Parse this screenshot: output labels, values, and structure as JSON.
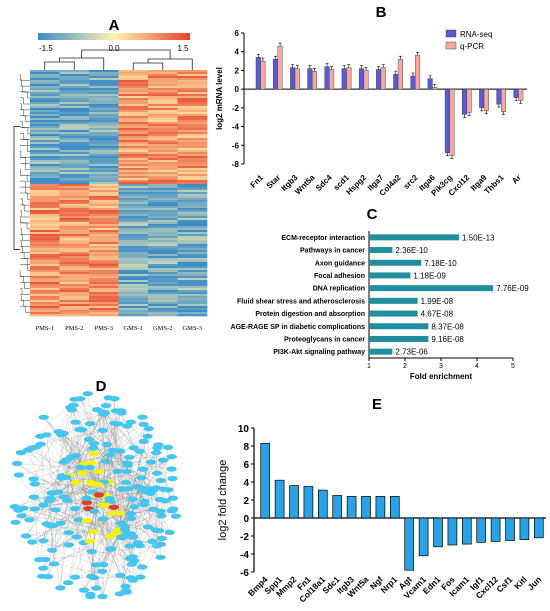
{
  "panels": {
    "a": {
      "letter": "A"
    },
    "b": {
      "letter": "B"
    },
    "c": {
      "letter": "C"
    },
    "d": {
      "letter": "D"
    },
    "e": {
      "letter": "E"
    }
  },
  "heatmap": {
    "colorbar_ticks": [
      "-1.5",
      "0.0",
      "1.5"
    ],
    "colorbar_colors": [
      "#3c8cc8",
      "#fff3b0",
      "#e8412a"
    ],
    "samples": [
      "PMS-1",
      "PMS-2",
      "PMS-3",
      "GMS-1",
      "GMS-2",
      "GMS-3"
    ]
  },
  "network": {
    "node_color": "#45c6ef",
    "hub_color": "#f2f20a",
    "core_color": "#e23b2e"
  },
  "chart_data": [
    {
      "panel": "B",
      "type": "bar",
      "ylabel": "log2 mRNA level",
      "ylim": [
        -8,
        6
      ],
      "yticks": [
        -8,
        -6,
        -4,
        -2,
        0,
        2,
        4,
        6
      ],
      "legend": "top-right",
      "categories": [
        "Fn1",
        "Star",
        "Itgb3",
        "Wnt5a",
        "Sdc4",
        "scd1",
        "Hspg2",
        "Itga7",
        "Col4a2",
        "src2",
        "Itga6",
        "Pik3cg",
        "Cxcl12",
        "Itga9",
        "Thbs1",
        "Ar"
      ],
      "series": [
        {
          "name": "RNA-seq",
          "color": "#5b5bd6",
          "values": [
            3.4,
            3.2,
            2.3,
            2.2,
            2.4,
            2.2,
            2.2,
            2.1,
            1.6,
            1.4,
            1.1,
            -6.8,
            -2.7,
            -2.0,
            -1.6,
            -0.9
          ]
        },
        {
          "name": "q-PCR",
          "color": "#f4a8a0",
          "values": [
            3.0,
            4.6,
            2.2,
            1.9,
            2.1,
            2.3,
            2.0,
            2.3,
            3.2,
            3.6,
            0.2,
            -7.1,
            -2.5,
            -2.3,
            -2.4,
            -1.2
          ]
        }
      ]
    },
    {
      "panel": "C",
      "type": "bar",
      "orientation": "horizontal",
      "xlabel": "Fold enrichment",
      "xlim": [
        1,
        5
      ],
      "xticks": [
        1,
        2,
        3,
        4,
        5
      ],
      "color": "#1f8fa0",
      "categories": [
        "ECM-receptor interaction",
        "Pathways in cancer",
        "Axon guidance",
        "Focal adhesion",
        "DNA replication",
        "Fluid shear stress and atherosclerosis",
        "Protein digestion and absorption",
        "AGE-RAGE SP in diabetic complications",
        "Proteoglycans in cancer",
        "PI3K-Akt signaling pathway"
      ],
      "values": [
        3.5,
        1.65,
        2.45,
        2.15,
        4.45,
        2.35,
        2.35,
        2.65,
        2.65,
        1.65
      ],
      "labels": [
        "1.50E-13",
        "2.36E-10",
        "7.18E-10",
        "1.18E-09",
        "7.76E-09",
        "1.99E-08",
        "4.67E-08",
        "8.37E-08",
        "9.16E-08",
        "2.73E-06"
      ]
    },
    {
      "panel": "E",
      "type": "bar",
      "ylabel": "log2 fold change",
      "ylim": [
        -6,
        10
      ],
      "yticks": [
        -6,
        -4,
        -2,
        0,
        2,
        4,
        6,
        8,
        10
      ],
      "color": "#2aa3e6",
      "categories": [
        "Bmp4",
        "Spp1",
        "Mmp2",
        "Fn1",
        "Col18a1",
        "Sdc1",
        "Itgb3",
        "Wnt5a",
        "Ngf",
        "Nrp1",
        "Agt",
        "Vcam1",
        "Edn1",
        "Fos",
        "Icam1",
        "Igf1",
        "Cxcl12",
        "Csf1",
        "Kitl",
        "Jun"
      ],
      "values": [
        8.3,
        4.2,
        3.6,
        3.5,
        3.1,
        2.5,
        2.4,
        2.4,
        2.4,
        2.4,
        -5.8,
        -4.2,
        -3.2,
        -3.0,
        -2.9,
        -2.7,
        -2.6,
        -2.5,
        -2.4,
        -2.2
      ]
    }
  ]
}
